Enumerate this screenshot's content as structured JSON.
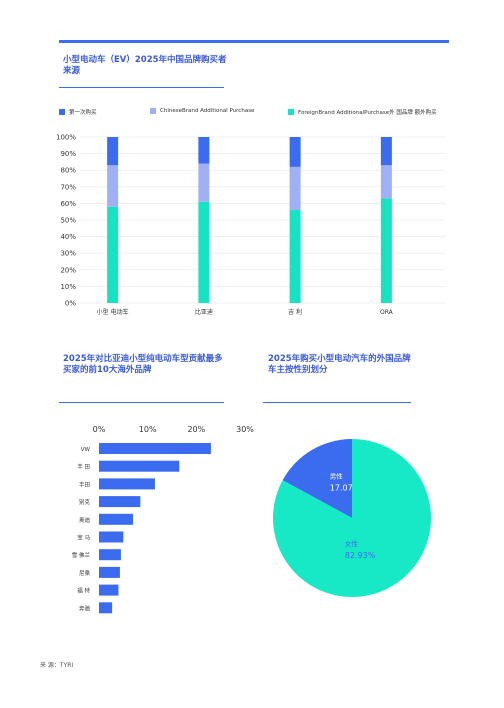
{
  "colors": {
    "accent": "#3b6cf0",
    "title": "#3b5bd6",
    "first": "#3b6cf0",
    "chinese": "#9fb0f5",
    "foreign": "#17e3c2",
    "pie_male": "#3b6cf0",
    "pie_female": "#17e9c7"
  },
  "chart1": {
    "title": "小型电动车（EV）2025年中国品牌购买者来源",
    "legend": [
      "第一次购买",
      "ChineseBrand Additional Purchase",
      "ForeignBrand AdditionalPurchase外 国品牌 额外购买"
    ]
  },
  "chart2": {
    "title": "2025年对比亚迪小型纯电动车型贡献最多买家的前10大海外品牌"
  },
  "chart3": {
    "title": "2025年购买小型电动汽车的外国品牌车主按性别划分"
  },
  "source": "来 源：TYRI",
  "chart_data": [
    {
      "type": "bar",
      "stacked": true,
      "categories": [
        "小型 电动车",
        "比亚迪",
        "吉 利",
        "ORA"
      ],
      "series": [
        {
          "name": "ForeignBrand AdditionalPurchase外 国品牌 额外购买",
          "values": [
            58,
            61,
            56,
            63
          ]
        },
        {
          "name": "ChineseBrand Additional Purchase",
          "values": [
            25,
            23,
            26,
            20
          ]
        },
        {
          "name": "第一次购买",
          "values": [
            17,
            16,
            18,
            17
          ]
        }
      ],
      "yticks": [
        "0%",
        "10%",
        "20%",
        "30%",
        "40%",
        "50%",
        "60%",
        "70%",
        "80%",
        "90%",
        "100%"
      ],
      "ylim": [
        0,
        100
      ],
      "grid": true,
      "legend": "top"
    },
    {
      "type": "bar",
      "orientation": "horizontal",
      "categories": [
        "VW",
        "丰 田",
        "丰田",
        "别克",
        "奥迪",
        "宝 马",
        "雪 佛兰",
        "尼桑",
        "福 特",
        "奔驰"
      ],
      "values": [
        23,
        16.5,
        11.5,
        8.5,
        7,
        5,
        4.5,
        4.3,
        4,
        2.7
      ],
      "xticks": [
        "0%",
        "10%",
        "20%",
        "30%"
      ],
      "xlim": [
        0,
        30
      ]
    },
    {
      "type": "pie",
      "labels": [
        "男性",
        "女性"
      ],
      "values": [
        17.07,
        82.93
      ],
      "value_labels": [
        "17.07%",
        "82.93%"
      ]
    }
  ]
}
